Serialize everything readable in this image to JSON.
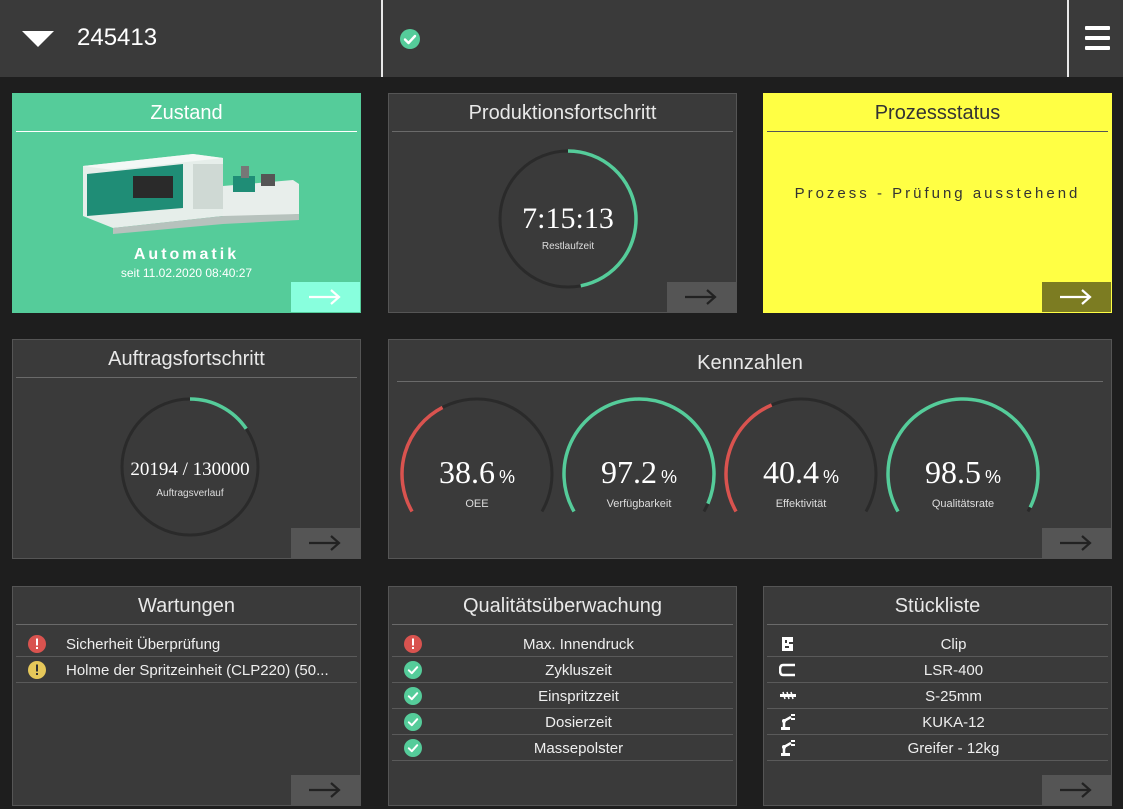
{
  "topbar": {
    "machine_id": "245413"
  },
  "zustand": {
    "title": "Zustand",
    "state": "Automatik",
    "since": "seit 11.02.2020 08:40:27"
  },
  "produktion": {
    "title": "Produktionsfortschritt",
    "time": "7:15:13",
    "label": "Restlaufzeit",
    "progress": 0.47
  },
  "prozess": {
    "title": "Prozessstatus",
    "status": "Prozess - Prüfung ausstehend"
  },
  "auftrag": {
    "title": "Auftragsfortschritt",
    "value": "20194 / 130000",
    "label": "Auftragsverlauf",
    "progress": 0.155
  },
  "kennzahlen": {
    "title": "Kennzahlen",
    "items": [
      {
        "value": "38.6",
        "unit": "%",
        "label": "OEE",
        "status_color": "#d9534f"
      },
      {
        "value": "97.2",
        "unit": "%",
        "label": "Verfügbarkeit",
        "status_color": "#55cc9a"
      },
      {
        "value": "40.4",
        "unit": "%",
        "label": "Effektivität",
        "status_color": "#d9534f"
      },
      {
        "value": "98.5",
        "unit": "%",
        "label": "Qualitätsrate",
        "status_color": "#55cc9a"
      }
    ]
  },
  "wartungen": {
    "title": "Wartungen",
    "items": [
      {
        "text": "Sicherheit Überprüfung",
        "icon": "error-icon"
      },
      {
        "text": "Holme der Spritzeinheit (CLP220) (50...",
        "icon": "warning-icon"
      }
    ]
  },
  "qualitaet": {
    "title": "Qualitätsüberwachung",
    "items": [
      {
        "text": "Max. Innendruck",
        "icon": "error-icon"
      },
      {
        "text": "Zykluszeit",
        "icon": "check-icon"
      },
      {
        "text": "Einspritzzeit",
        "icon": "check-icon"
      },
      {
        "text": "Dosierzeit",
        "icon": "check-icon"
      },
      {
        "text": "Massepolster",
        "icon": "check-icon"
      }
    ]
  },
  "stueckliste": {
    "title": "Stückliste",
    "items": [
      {
        "text": "Clip",
        "icon": "part-icon"
      },
      {
        "text": "LSR-400",
        "icon": "material-icon"
      },
      {
        "text": "S-25mm",
        "icon": "screw-icon"
      },
      {
        "text": "KUKA-12",
        "icon": "robot-icon"
      },
      {
        "text": "Greifer - 12kg",
        "icon": "robot-icon"
      }
    ]
  },
  "colors": {
    "green": "#55cc9a",
    "red": "#d9534f",
    "yellow": "#ffff44",
    "warning": "#e6c85a"
  }
}
